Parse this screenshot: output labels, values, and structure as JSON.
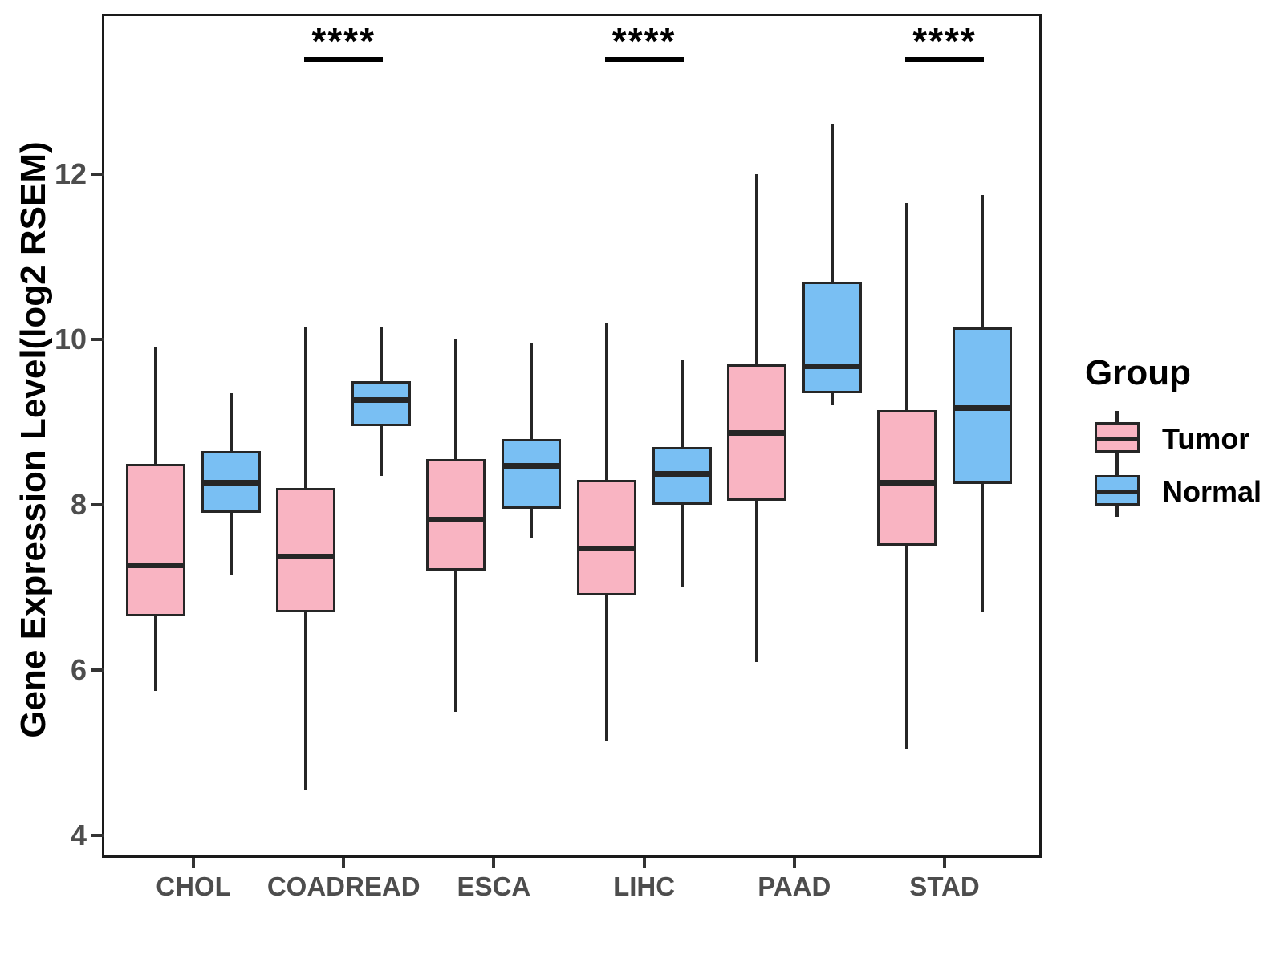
{
  "y_axis": {
    "title": "Gene Expression Level(log2 RSEM)"
  },
  "legend": {
    "title": "Group",
    "items": [
      {
        "label": "Tumor",
        "color": "#F9B4C2"
      },
      {
        "label": "Normal",
        "color": "#79BFF3"
      }
    ]
  },
  "colors": {
    "tumor_fill": "#F9B4C2",
    "normal_fill": "#79BFF3",
    "box_stroke": "#262626",
    "tick_text": "#4d4d4d",
    "panel_border": "#1a1a1a"
  },
  "chart_data": {
    "type": "boxplot",
    "ylabel": "Gene Expression Level(log2 RSEM)",
    "ylim": [
      3.55,
      13.7
    ],
    "yticks": [
      4,
      6,
      8,
      10,
      12
    ],
    "categories": [
      "CHOL",
      "COADREAD",
      "ESCA",
      "LIHC",
      "PAAD",
      "STAD"
    ],
    "grid": false,
    "legend_position": "right",
    "series": [
      {
        "name": "Tumor",
        "color": "#F9B4C2",
        "boxes": [
          {
            "category": "CHOL",
            "whisker_low": 5.75,
            "q1": 6.65,
            "median": 7.3,
            "q3": 8.5,
            "whisker_high": 9.9
          },
          {
            "category": "COADREAD",
            "whisker_low": 4.55,
            "q1": 6.7,
            "median": 7.4,
            "q3": 8.2,
            "whisker_high": 10.15
          },
          {
            "category": "ESCA",
            "whisker_low": 5.5,
            "q1": 7.2,
            "median": 7.85,
            "q3": 8.55,
            "whisker_high": 10.0
          },
          {
            "category": "LIHC",
            "whisker_low": 5.15,
            "q1": 6.9,
            "median": 7.5,
            "q3": 8.3,
            "whisker_high": 10.2
          },
          {
            "category": "PAAD",
            "whisker_low": 6.1,
            "q1": 8.05,
            "median": 8.9,
            "q3": 9.7,
            "whisker_high": 12.0
          },
          {
            "category": "STAD",
            "whisker_low": 5.05,
            "q1": 7.5,
            "median": 8.3,
            "q3": 9.15,
            "whisker_high": 11.65
          }
        ]
      },
      {
        "name": "Normal",
        "color": "#79BFF3",
        "boxes": [
          {
            "category": "CHOL",
            "whisker_low": 7.15,
            "q1": 7.9,
            "median": 8.3,
            "q3": 8.65,
            "whisker_high": 9.35
          },
          {
            "category": "COADREAD",
            "whisker_low": 8.35,
            "q1": 8.95,
            "median": 9.3,
            "q3": 9.5,
            "whisker_high": 10.15
          },
          {
            "category": "ESCA",
            "whisker_low": 7.6,
            "q1": 7.95,
            "median": 8.5,
            "q3": 8.8,
            "whisker_high": 9.95
          },
          {
            "category": "LIHC",
            "whisker_low": 7.0,
            "q1": 8.0,
            "median": 8.4,
            "q3": 8.7,
            "whisker_high": 9.75
          },
          {
            "category": "PAAD",
            "whisker_low": 9.2,
            "q1": 9.35,
            "median": 9.7,
            "q3": 10.7,
            "whisker_high": 12.6
          },
          {
            "category": "STAD",
            "whisker_low": 6.7,
            "q1": 8.25,
            "median": 9.2,
            "q3": 10.15,
            "whisker_high": 11.75
          }
        ]
      }
    ],
    "significance": [
      {
        "category": "COADREAD",
        "label": "****"
      },
      {
        "category": "LIHC",
        "label": "****"
      },
      {
        "category": "STAD",
        "label": "****"
      }
    ]
  }
}
